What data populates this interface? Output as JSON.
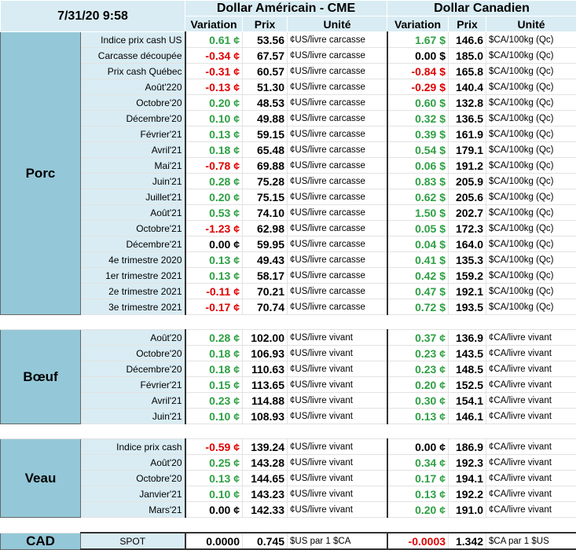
{
  "header": {
    "datetime": "7/31/20 9:58",
    "usd_title": "Dollar Américain - CME",
    "cad_title": "Dollar Canadien",
    "col_variation": "Variation",
    "col_prix": "Prix",
    "col_unite": "Unité"
  },
  "colors": {
    "positive": "#2ea043",
    "negative": "#e00000",
    "section_bg": "#94c8d8",
    "label_bg": "#d9ecf3"
  },
  "sections": [
    {
      "name": "Porc",
      "rows": [
        {
          "label": "Indice prix cash US",
          "usd_var": "0.61 ¢",
          "usd_sign": "pos",
          "usd_prix": "53.56",
          "usd_unit": "¢US/livre carcasse",
          "cad_var": "1.67 $",
          "cad_sign": "pos",
          "cad_prix": "146.6",
          "cad_unit": "$CA/100kg (Qc)"
        },
        {
          "label": "Carcasse découpée",
          "usd_var": "-0.34 ¢",
          "usd_sign": "neg",
          "usd_prix": "67.57",
          "usd_unit": "¢US/livre carcasse",
          "cad_var": "0.00 $",
          "cad_sign": "zero",
          "cad_prix": "185.0",
          "cad_unit": "$CA/100kg (Qc)"
        },
        {
          "label": "Prix cash Québec",
          "usd_var": "-0.31 ¢",
          "usd_sign": "neg",
          "usd_prix": "60.57",
          "usd_unit": "¢US/livre carcasse",
          "cad_var": "-0.84 $",
          "cad_sign": "neg",
          "cad_prix": "165.8",
          "cad_unit": "$CA/100kg (Qc)"
        },
        {
          "label": "Août'220",
          "usd_var": "-0.13 ¢",
          "usd_sign": "neg",
          "usd_prix": "51.30",
          "usd_unit": "¢US/livre carcasse",
          "cad_var": "-0.29 $",
          "cad_sign": "neg",
          "cad_prix": "140.4",
          "cad_unit": "$CA/100kg (Qc)"
        },
        {
          "label": "Octobre'20",
          "usd_var": "0.20 ¢",
          "usd_sign": "pos",
          "usd_prix": "48.53",
          "usd_unit": "¢US/livre carcasse",
          "cad_var": "0.60 $",
          "cad_sign": "pos",
          "cad_prix": "132.8",
          "cad_unit": "$CA/100kg (Qc)"
        },
        {
          "label": "Décembre'20",
          "usd_var": "0.10 ¢",
          "usd_sign": "pos",
          "usd_prix": "49.88",
          "usd_unit": "¢US/livre carcasse",
          "cad_var": "0.32 $",
          "cad_sign": "pos",
          "cad_prix": "136.5",
          "cad_unit": "$CA/100kg (Qc)"
        },
        {
          "label": "Février'21",
          "usd_var": "0.13 ¢",
          "usd_sign": "pos",
          "usd_prix": "59.15",
          "usd_unit": "¢US/livre carcasse",
          "cad_var": "0.39 $",
          "cad_sign": "pos",
          "cad_prix": "161.9",
          "cad_unit": "$CA/100kg (Qc)"
        },
        {
          "label": "Avril'21",
          "usd_var": "0.18 ¢",
          "usd_sign": "pos",
          "usd_prix": "65.48",
          "usd_unit": "¢US/livre carcasse",
          "cad_var": "0.54 $",
          "cad_sign": "pos",
          "cad_prix": "179.1",
          "cad_unit": "$CA/100kg (Qc)"
        },
        {
          "label": "Mai'21",
          "usd_var": "-0.78 ¢",
          "usd_sign": "neg",
          "usd_prix": "69.88",
          "usd_unit": "¢US/livre carcasse",
          "cad_var": "0.06 $",
          "cad_sign": "pos",
          "cad_prix": "191.2",
          "cad_unit": "$CA/100kg (Qc)"
        },
        {
          "label": "Juin'21",
          "usd_var": "0.28 ¢",
          "usd_sign": "pos",
          "usd_prix": "75.28",
          "usd_unit": "¢US/livre carcasse",
          "cad_var": "0.83 $",
          "cad_sign": "pos",
          "cad_prix": "205.9",
          "cad_unit": "$CA/100kg (Qc)"
        },
        {
          "label": "Juillet'21",
          "usd_var": "0.20 ¢",
          "usd_sign": "pos",
          "usd_prix": "75.15",
          "usd_unit": "¢US/livre carcasse",
          "cad_var": "0.62 $",
          "cad_sign": "pos",
          "cad_prix": "205.6",
          "cad_unit": "$CA/100kg (Qc)"
        },
        {
          "label": "Août'21",
          "usd_var": "0.53 ¢",
          "usd_sign": "pos",
          "usd_prix": "74.10",
          "usd_unit": "¢US/livre carcasse",
          "cad_var": "1.50 $",
          "cad_sign": "pos",
          "cad_prix": "202.7",
          "cad_unit": "$CA/100kg (Qc)"
        },
        {
          "label": "Octobre'21",
          "usd_var": "-1.23 ¢",
          "usd_sign": "neg",
          "usd_prix": "62.98",
          "usd_unit": "¢US/livre carcasse",
          "cad_var": "0.05 $",
          "cad_sign": "pos",
          "cad_prix": "172.3",
          "cad_unit": "$CA/100kg (Qc)"
        },
        {
          "label": "Décembre'21",
          "usd_var": "0.00 ¢",
          "usd_sign": "zero",
          "usd_prix": "59.95",
          "usd_unit": "¢US/livre carcasse",
          "cad_var": "0.04 $",
          "cad_sign": "pos",
          "cad_prix": "164.0",
          "cad_unit": "$CA/100kg (Qc)"
        },
        {
          "label": "4e trimestre 2020",
          "usd_var": "0.13 ¢",
          "usd_sign": "pos",
          "usd_prix": "49.43",
          "usd_unit": "¢US/livre carcasse",
          "cad_var": "0.41 $",
          "cad_sign": "pos",
          "cad_prix": "135.3",
          "cad_unit": "$CA/100kg (Qc)"
        },
        {
          "label": "1er trimestre 2021",
          "usd_var": "0.13 ¢",
          "usd_sign": "pos",
          "usd_prix": "58.17",
          "usd_unit": "¢US/livre carcasse",
          "cad_var": "0.42 $",
          "cad_sign": "pos",
          "cad_prix": "159.2",
          "cad_unit": "$CA/100kg (Qc)"
        },
        {
          "label": "2e trimestre 2021",
          "usd_var": "-0.11 ¢",
          "usd_sign": "neg",
          "usd_prix": "70.21",
          "usd_unit": "¢US/livre carcasse",
          "cad_var": "0.47 $",
          "cad_sign": "pos",
          "cad_prix": "192.1",
          "cad_unit": "$CA/100kg (Qc)"
        },
        {
          "label": "3e trimestre 2021",
          "usd_var": "-0.17 ¢",
          "usd_sign": "neg",
          "usd_prix": "70.74",
          "usd_unit": "¢US/livre carcasse",
          "cad_var": "0.72 $",
          "cad_sign": "pos",
          "cad_prix": "193.5",
          "cad_unit": "$CA/100kg (Qc)"
        }
      ]
    },
    {
      "name": "Bœuf",
      "rows": [
        {
          "label": "Août'20",
          "usd_var": "0.28 ¢",
          "usd_sign": "pos",
          "usd_prix": "102.00",
          "usd_unit": "¢US/livre vivant",
          "cad_var": "0.37 ¢",
          "cad_sign": "pos",
          "cad_prix": "136.9",
          "cad_unit": "¢CA/livre vivant"
        },
        {
          "label": "Octobre'20",
          "usd_var": "0.18 ¢",
          "usd_sign": "pos",
          "usd_prix": "106.93",
          "usd_unit": "¢US/livre vivant",
          "cad_var": "0.23 ¢",
          "cad_sign": "pos",
          "cad_prix": "143.5",
          "cad_unit": "¢CA/livre vivant"
        },
        {
          "label": "Décembre'20",
          "usd_var": "0.18 ¢",
          "usd_sign": "pos",
          "usd_prix": "110.63",
          "usd_unit": "¢US/livre vivant",
          "cad_var": "0.23 ¢",
          "cad_sign": "pos",
          "cad_prix": "148.5",
          "cad_unit": "¢CA/livre vivant"
        },
        {
          "label": "Février'21",
          "usd_var": "0.15 ¢",
          "usd_sign": "pos",
          "usd_prix": "113.65",
          "usd_unit": "¢US/livre vivant",
          "cad_var": "0.20 ¢",
          "cad_sign": "pos",
          "cad_prix": "152.5",
          "cad_unit": "¢CA/livre vivant"
        },
        {
          "label": "Avril'21",
          "usd_var": "0.23 ¢",
          "usd_sign": "pos",
          "usd_prix": "114.88",
          "usd_unit": "¢US/livre vivant",
          "cad_var": "0.30 ¢",
          "cad_sign": "pos",
          "cad_prix": "154.1",
          "cad_unit": "¢CA/livre vivant"
        },
        {
          "label": "Juin'21",
          "usd_var": "0.10 ¢",
          "usd_sign": "pos",
          "usd_prix": "108.93",
          "usd_unit": "¢US/livre vivant",
          "cad_var": "0.13 ¢",
          "cad_sign": "pos",
          "cad_prix": "146.1",
          "cad_unit": "¢CA/livre vivant"
        }
      ]
    },
    {
      "name": "Veau",
      "rows": [
        {
          "label": "Indice prix cash",
          "usd_var": "-0.59 ¢",
          "usd_sign": "neg",
          "usd_prix": "139.24",
          "usd_unit": "¢US/livre vivant",
          "cad_var": "0.00 ¢",
          "cad_sign": "zero",
          "cad_prix": "186.9",
          "cad_unit": "¢CA/livre vivant"
        },
        {
          "label": "Août'20",
          "usd_var": "0.25 ¢",
          "usd_sign": "pos",
          "usd_prix": "143.28",
          "usd_unit": "¢US/livre vivant",
          "cad_var": "0.34 ¢",
          "cad_sign": "pos",
          "cad_prix": "192.3",
          "cad_unit": "¢CA/livre vivant"
        },
        {
          "label": "Octobre'20",
          "usd_var": "0.13 ¢",
          "usd_sign": "pos",
          "usd_prix": "144.65",
          "usd_unit": "¢US/livre vivant",
          "cad_var": "0.17 ¢",
          "cad_sign": "pos",
          "cad_prix": "194.1",
          "cad_unit": "¢CA/livre vivant"
        },
        {
          "label": "Janvier'21",
          "usd_var": "0.10 ¢",
          "usd_sign": "pos",
          "usd_prix": "143.23",
          "usd_unit": "¢US/livre vivant",
          "cad_var": "0.13 ¢",
          "cad_sign": "pos",
          "cad_prix": "192.2",
          "cad_unit": "¢CA/livre vivant"
        },
        {
          "label": "Mars'21",
          "usd_var": "0.00 ¢",
          "usd_sign": "zero",
          "usd_prix": "142.33",
          "usd_unit": "¢US/livre vivant",
          "cad_var": "0.20 ¢",
          "cad_sign": "pos",
          "cad_prix": "191.0",
          "cad_unit": "¢CA/livre vivant"
        }
      ]
    }
  ],
  "cad": {
    "name": "CAD",
    "label": "SPOT",
    "usd_var": "0.0000",
    "usd_prix": "0.745",
    "usd_unit": "$US par 1 $CA",
    "cad_var": "-0.0003",
    "cad_prix": "1.342",
    "cad_unit": "$CA par 1 $US"
  }
}
